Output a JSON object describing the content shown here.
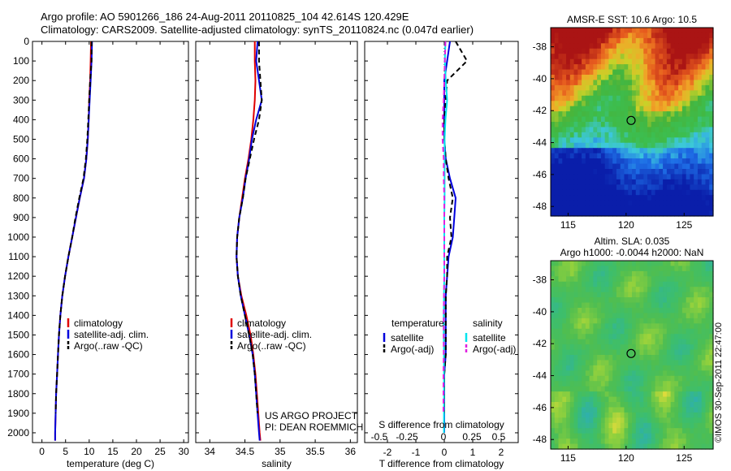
{
  "header": {
    "line1": "Argo profile: AO 5901266_186 24-Aug-2011 20110825_104 42.614S 120.429E",
    "line2": "Climatology: CARS2009. Satellite-adjusted climatology: synTS_20110824.nc (0.047d earlier)"
  },
  "stamp": "©IMOS 30-Sep-2011 22:47:00",
  "colors": {
    "climatology": "#e00000",
    "satellite": "#0000dd",
    "argo": "#000000",
    "satellite_salinity": "#00e5ee",
    "argo_salinity": "#e020e0"
  },
  "chart_data": [
    {
      "type": "line",
      "xlabel": "temperature (deg C)",
      "xlim": [
        -2,
        31
      ],
      "ylim": [
        2050,
        0
      ],
      "xticks": [
        0,
        5,
        10,
        15,
        20,
        25,
        30
      ],
      "yticks": [
        0,
        100,
        200,
        300,
        400,
        500,
        600,
        700,
        800,
        900,
        1000,
        1100,
        1200,
        1300,
        1400,
        1500,
        1600,
        1700,
        1800,
        1900,
        2000
      ],
      "legend": [
        "climatology",
        "satellite-adj. clim.",
        "Argo(..raw -QC)"
      ],
      "series": [
        {
          "name": "climatology",
          "color": "#e00000",
          "x": [
            10.4,
            10.3,
            10.2,
            10.0,
            9.9,
            9.7,
            9.4,
            8.9,
            8.0,
            7.2,
            6.4,
            5.6,
            4.9,
            4.3,
            3.9,
            3.6,
            3.4,
            3.2,
            3.0,
            2.9,
            2.8,
            2.8
          ],
          "y": [
            0,
            100,
            200,
            300,
            400,
            500,
            600,
            700,
            800,
            900,
            1000,
            1100,
            1200,
            1300,
            1400,
            1500,
            1600,
            1700,
            1800,
            1900,
            2000,
            2040
          ]
        },
        {
          "name": "satellite-adj. clim.",
          "color": "#0000dd",
          "x": [
            10.6,
            10.5,
            10.3,
            10.1,
            9.9,
            9.7,
            9.4,
            8.9,
            8.0,
            7.2,
            6.4,
            5.6,
            4.9,
            4.3,
            3.9,
            3.6,
            3.4,
            3.2,
            3.0,
            2.9,
            2.8,
            2.8
          ],
          "y": [
            0,
            100,
            200,
            300,
            400,
            500,
            600,
            700,
            800,
            900,
            1000,
            1100,
            1200,
            1300,
            1400,
            1500,
            1600,
            1700,
            1800,
            1900,
            2000,
            2040
          ]
        },
        {
          "name": "Argo(..raw -QC)",
          "color": "#000000",
          "dash": true,
          "x": [
            10.5,
            10.5,
            10.2,
            10.0,
            9.8,
            9.6,
            9.3,
            8.8,
            7.9,
            7.1,
            6.4,
            5.6,
            4.9,
            4.3,
            3.9,
            3.6,
            3.4,
            3.2,
            3.0,
            2.9
          ],
          "y": [
            0,
            100,
            200,
            300,
            400,
            500,
            600,
            700,
            800,
            900,
            1000,
            1100,
            1200,
            1300,
            1400,
            1500,
            1600,
            1700,
            1800,
            1900
          ]
        }
      ]
    },
    {
      "type": "line",
      "xlabel": "salinity",
      "xlim": [
        33.8,
        36.1
      ],
      "ylim": [
        2050,
        0
      ],
      "xticks": [
        34,
        34.5,
        35,
        35.5,
        36
      ],
      "legend": [
        "climatology",
        "satellite-adj. clim.",
        "Argo(..raw -QC)"
      ],
      "annotation": [
        "US ARGO PROJECT",
        "PI: DEAN ROEMMICH"
      ],
      "series": [
        {
          "name": "climatology",
          "color": "#e00000",
          "x": [
            34.64,
            34.64,
            34.65,
            34.64,
            34.62,
            34.59,
            34.55,
            34.5,
            34.46,
            34.42,
            34.39,
            34.38,
            34.4,
            34.45,
            34.52,
            34.58,
            34.62,
            34.65,
            34.67,
            34.69,
            34.71,
            34.72
          ],
          "y": [
            0,
            100,
            200,
            300,
            400,
            500,
            600,
            700,
            800,
            900,
            1000,
            1100,
            1200,
            1300,
            1400,
            1500,
            1600,
            1700,
            1800,
            1900,
            2000,
            2040
          ]
        },
        {
          "name": "satellite-adj. clim.",
          "color": "#0000dd",
          "x": [
            34.68,
            34.66,
            34.7,
            34.74,
            34.66,
            34.6,
            34.56,
            34.51,
            34.47,
            34.42,
            34.39,
            34.38,
            34.4,
            34.44,
            34.5,
            34.56,
            34.61,
            34.64,
            34.66,
            34.68,
            34.7,
            34.71
          ],
          "y": [
            0,
            100,
            200,
            300,
            400,
            500,
            600,
            700,
            800,
            900,
            1000,
            1100,
            1200,
            1300,
            1400,
            1500,
            1600,
            1700,
            1800,
            1900,
            2000,
            2040
          ]
        },
        {
          "name": "Argo(..raw -QC)",
          "color": "#000000",
          "dash": true,
          "x": [
            34.7,
            34.7,
            34.72,
            34.74,
            34.7,
            34.63,
            34.57,
            34.51,
            34.47,
            34.42,
            34.39,
            34.38,
            34.4,
            34.44,
            34.5,
            34.56,
            34.61,
            34.64,
            34.66,
            34.68
          ],
          "y": [
            0,
            100,
            200,
            300,
            400,
            500,
            600,
            700,
            800,
            900,
            1000,
            1100,
            1200,
            1300,
            1400,
            1500,
            1600,
            1700,
            1800,
            1900
          ]
        }
      ]
    },
    {
      "type": "line",
      "xlabel": "T difference from climatology",
      "xlabel2": "S difference from climatology",
      "xlim": [
        -2.8,
        2.6
      ],
      "ylim": [
        2050,
        0
      ],
      "xticks": [
        -2,
        -1,
        0,
        1,
        2
      ],
      "xticks2": [
        -0.5,
        -0.25,
        0,
        0.25,
        0.5
      ],
      "legend_headers": [
        "temperature",
        "salinity"
      ],
      "legend": [
        "satellite",
        "Argo(-adj)",
        "satellite",
        "Argo(-adj)"
      ],
      "series": [
        {
          "name": "temperature satellite",
          "color": "#0000dd",
          "x": [
            0.2,
            0.1,
            0.0,
            0.0,
            0.0,
            0.0,
            0.05,
            0.2,
            0.4,
            0.35,
            0.3,
            0.15,
            0.1,
            0.05,
            0.05,
            0.05,
            0.05,
            0.0,
            0.0,
            0.0,
            0.0
          ],
          "y": [
            0,
            100,
            200,
            300,
            400,
            500,
            600,
            700,
            800,
            900,
            1000,
            1100,
            1200,
            1300,
            1400,
            1500,
            1600,
            1700,
            1800,
            1900,
            2000
          ]
        },
        {
          "name": "temperature Argo(-adj)",
          "color": "#000000",
          "dash": true,
          "x": [
            0.4,
            0.8,
            0.1,
            0.05,
            0.0,
            0.0,
            0.05,
            0.15,
            0.3,
            0.2,
            0.25,
            0.1,
            0.1,
            0.05,
            0.05,
            0.05,
            0.05,
            0.0,
            0.0,
            0.0
          ],
          "y": [
            0,
            100,
            200,
            300,
            400,
            500,
            600,
            700,
            800,
            900,
            1000,
            1100,
            1200,
            1300,
            1400,
            1500,
            1600,
            1700,
            1800,
            1900
          ]
        },
        {
          "name": "salinity satellite",
          "color": "#00e5ee",
          "x": [
            0.04,
            0.02,
            0.05,
            0.1,
            0.04,
            0.01,
            0.01,
            0.01,
            0.01,
            0.0,
            0.0,
            0.0,
            0.0,
            -0.01,
            -0.02,
            -0.02,
            -0.01,
            -0.01,
            -0.01,
            -0.01,
            -0.01
          ],
          "y": [
            0,
            100,
            200,
            300,
            400,
            500,
            600,
            700,
            800,
            900,
            1000,
            1100,
            1200,
            1300,
            1400,
            1500,
            1600,
            1700,
            1800,
            1900,
            2000
          ]
        },
        {
          "name": "salinity Argo(-adj)",
          "color": "#e020e0",
          "dash": true,
          "x": [
            0.04,
            0.02,
            0.0,
            -0.02,
            -0.06,
            -0.06,
            -0.02,
            -0.02,
            0.0,
            0.0,
            0.0,
            0.0,
            0.0,
            -0.01,
            -0.02,
            -0.02,
            -0.02,
            -0.03,
            -0.03,
            -0.03
          ],
          "y": [
            0,
            100,
            200,
            300,
            400,
            500,
            600,
            700,
            800,
            900,
            1000,
            1100,
            1200,
            1300,
            1400,
            1500,
            1600,
            1700,
            1800,
            1900
          ]
        }
      ]
    },
    {
      "type": "heatmap",
      "title": "AMSR-E SST: 10.6 Argo: 10.5",
      "xlim": [
        113.5,
        127.5
      ],
      "ylim": [
        -48.6,
        -36.8
      ],
      "xticks": [
        115,
        120,
        125
      ],
      "yticks": [
        -38,
        -40,
        -42,
        -44,
        -46,
        -48
      ],
      "marker": {
        "lon": 120.429,
        "lat": -42.614
      }
    },
    {
      "type": "heatmap",
      "title": "Altim. SLA: 0.035",
      "subtitle": "Argo h1000: -0.0044 h2000: NaN",
      "xlim": [
        113.5,
        127.5
      ],
      "ylim": [
        -48.6,
        -36.8
      ],
      "xticks": [
        115,
        120,
        125
      ],
      "yticks": [
        -38,
        -40,
        -42,
        -44,
        -46,
        -48
      ],
      "marker": {
        "lon": 120.429,
        "lat": -42.614
      }
    }
  ]
}
